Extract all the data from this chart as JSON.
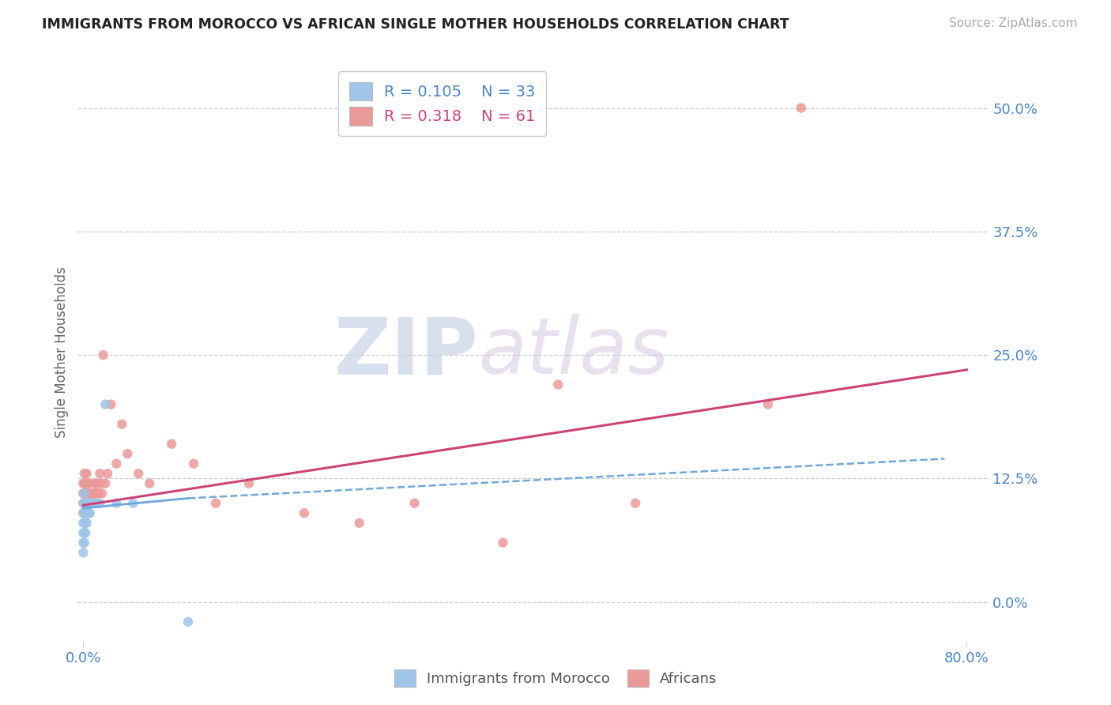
{
  "title": "IMMIGRANTS FROM MOROCCO VS AFRICAN SINGLE MOTHER HOUSEHOLDS CORRELATION CHART",
  "source": "Source: ZipAtlas.com",
  "ylabel": "Single Mother Households",
  "xlim": [
    -0.005,
    0.82
  ],
  "ylim": [
    -0.04,
    0.545
  ],
  "yticks": [
    0.0,
    0.125,
    0.25,
    0.375,
    0.5
  ],
  "ytick_labels": [
    "0.0%",
    "12.5%",
    "25.0%",
    "37.5%",
    "50.0%"
  ],
  "xtick_positions": [
    0.0,
    0.8
  ],
  "xtick_labels": [
    "0.0%",
    "80.0%"
  ],
  "legend_r1": "R = 0.105",
  "legend_n1": "N = 33",
  "legend_r2": "R = 0.318",
  "legend_n2": "N = 61",
  "color_blue_scatter": "#9fc5e8",
  "color_pink_scatter": "#ea9999",
  "color_line_blue": "#6fa8dc",
  "color_line_pink": "#cc4477",
  "color_axis_labels": "#4a86c8",
  "color_source": "#aaaaaa",
  "background_color": "#ffffff",
  "grid_color": "#cccccc",
  "morocco_x": [
    0.0,
    0.0,
    0.0,
    0.0,
    0.0,
    0.0,
    0.001,
    0.001,
    0.001,
    0.001,
    0.001,
    0.001,
    0.002,
    0.002,
    0.002,
    0.002,
    0.003,
    0.003,
    0.003,
    0.004,
    0.004,
    0.005,
    0.005,
    0.006,
    0.007,
    0.008,
    0.01,
    0.012,
    0.015,
    0.02,
    0.03,
    0.045,
    0.095
  ],
  "morocco_y": [
    0.05,
    0.06,
    0.07,
    0.08,
    0.09,
    0.1,
    0.06,
    0.07,
    0.08,
    0.09,
    0.1,
    0.11,
    0.07,
    0.08,
    0.09,
    0.1,
    0.08,
    0.09,
    0.1,
    0.09,
    0.1,
    0.09,
    0.1,
    0.09,
    0.1,
    0.1,
    0.1,
    0.1,
    0.1,
    0.2,
    0.1,
    0.1,
    -0.02
  ],
  "african_x": [
    0.0,
    0.0,
    0.0,
    0.0,
    0.001,
    0.001,
    0.001,
    0.001,
    0.001,
    0.002,
    0.002,
    0.002,
    0.002,
    0.003,
    0.003,
    0.003,
    0.003,
    0.004,
    0.004,
    0.004,
    0.005,
    0.005,
    0.005,
    0.005,
    0.006,
    0.006,
    0.007,
    0.007,
    0.008,
    0.008,
    0.009,
    0.01,
    0.01,
    0.011,
    0.012,
    0.013,
    0.014,
    0.015,
    0.016,
    0.017,
    0.018,
    0.02,
    0.022,
    0.025,
    0.03,
    0.035,
    0.04,
    0.05,
    0.06,
    0.08,
    0.1,
    0.12,
    0.15,
    0.2,
    0.25,
    0.3,
    0.38,
    0.43,
    0.5,
    0.62,
    0.65
  ],
  "african_y": [
    0.09,
    0.1,
    0.11,
    0.12,
    0.09,
    0.1,
    0.11,
    0.12,
    0.13,
    0.09,
    0.1,
    0.11,
    0.12,
    0.1,
    0.11,
    0.12,
    0.13,
    0.1,
    0.11,
    0.12,
    0.09,
    0.1,
    0.11,
    0.12,
    0.1,
    0.11,
    0.1,
    0.11,
    0.1,
    0.11,
    0.1,
    0.11,
    0.12,
    0.11,
    0.12,
    0.11,
    0.11,
    0.13,
    0.12,
    0.11,
    0.25,
    0.12,
    0.13,
    0.2,
    0.14,
    0.18,
    0.15,
    0.13,
    0.12,
    0.16,
    0.14,
    0.1,
    0.12,
    0.09,
    0.08,
    0.1,
    0.06,
    0.22,
    0.1,
    0.2,
    0.5
  ],
  "morocco_trend_x": [
    0.0,
    0.095
  ],
  "morocco_trend_y": [
    0.095,
    0.105
  ],
  "african_trend_x0": 0.0,
  "african_trend_x1": 0.8,
  "african_trend_y0": 0.098,
  "african_trend_y1": 0.235
}
